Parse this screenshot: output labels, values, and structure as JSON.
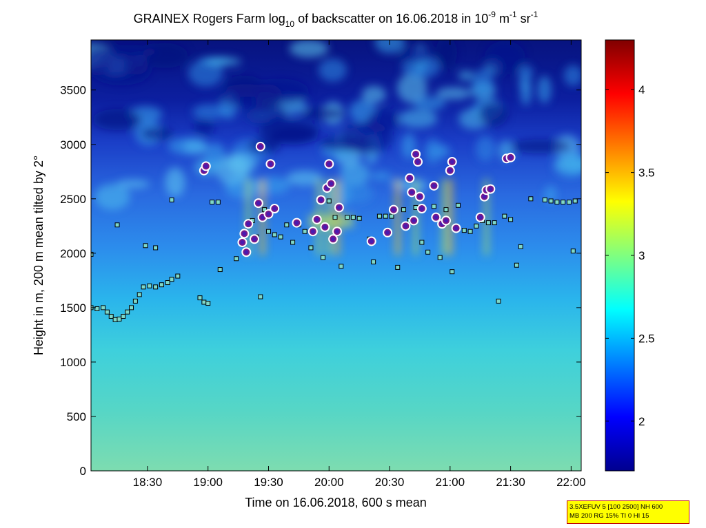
{
  "chart_data": {
    "type": "heatmap",
    "title": {
      "prefix": "GRAINEX Rogers Farm log",
      "prefix_sub": "10",
      "middle": " of backscatter on 16.06.2018 in 10",
      "exp1": "-9",
      "unit1": " m",
      "exp2": "-1",
      "unit2": " sr",
      "exp3": "-1"
    },
    "xlabel": "Time on 16.06.2018, 600 s mean",
    "ylabel": "Height in m, 200 m mean tilted by 2°",
    "xlim": [
      "18:02",
      "22:05"
    ],
    "ylim": [
      0,
      3960
    ],
    "x_ticks": [
      "18:30",
      "19:00",
      "19:30",
      "20:00",
      "20:30",
      "21:00",
      "21:30",
      "22:00"
    ],
    "y_ticks": [
      "0",
      "500",
      "1000",
      "1500",
      "2000",
      "2500",
      "3000",
      "3500"
    ],
    "colorbar": {
      "range": [
        1.7,
        4.3
      ],
      "ticks": [
        "2",
        "2.5",
        "3",
        "3.5",
        "4"
      ],
      "colormap": "jet"
    },
    "lower_layer_height_approx": 1500,
    "cloud_layer_height_approx": 2300,
    "square_markers": [
      {
        "x": "18:02",
        "y": 1500
      },
      {
        "x": "18:05",
        "y": 1490
      },
      {
        "x": "18:08",
        "y": 1500
      },
      {
        "x": "18:10",
        "y": 1460
      },
      {
        "x": "18:12",
        "y": 1420
      },
      {
        "x": "18:14",
        "y": 1390
      },
      {
        "x": "18:16",
        "y": 1395
      },
      {
        "x": "18:18",
        "y": 1420
      },
      {
        "x": "18:20",
        "y": 1460
      },
      {
        "x": "18:22",
        "y": 1500
      },
      {
        "x": "18:24",
        "y": 1560
      },
      {
        "x": "18:26",
        "y": 1620
      },
      {
        "x": "18:28",
        "y": 1690
      },
      {
        "x": "18:31",
        "y": 1700
      },
      {
        "x": "18:34",
        "y": 1690
      },
      {
        "x": "18:37",
        "y": 1710
      },
      {
        "x": "18:40",
        "y": 1730
      },
      {
        "x": "18:42",
        "y": 1760
      },
      {
        "x": "18:45",
        "y": 1790
      },
      {
        "x": "18:02",
        "y": 1990
      },
      {
        "x": "18:15",
        "y": 2260
      },
      {
        "x": "18:29",
        "y": 2070
      },
      {
        "x": "18:34",
        "y": 2050
      },
      {
        "x": "18:42",
        "y": 2490
      },
      {
        "x": "18:56",
        "y": 1590
      },
      {
        "x": "18:58",
        "y": 1550
      },
      {
        "x": "19:00",
        "y": 1540
      },
      {
        "x": "19:02",
        "y": 2470
      },
      {
        "x": "19:05",
        "y": 2470
      },
      {
        "x": "19:06",
        "y": 1850
      },
      {
        "x": "19:14",
        "y": 1950
      },
      {
        "x": "19:20",
        "y": 2250
      },
      {
        "x": "19:22",
        "y": 2300
      },
      {
        "x": "19:24",
        "y": 2150
      },
      {
        "x": "19:26",
        "y": 1600
      },
      {
        "x": "19:28",
        "y": 2400
      },
      {
        "x": "19:30",
        "y": 2200
      },
      {
        "x": "19:33",
        "y": 2170
      },
      {
        "x": "19:36",
        "y": 2150
      },
      {
        "x": "19:39",
        "y": 2260
      },
      {
        "x": "19:42",
        "y": 2100
      },
      {
        "x": "19:45",
        "y": 2260
      },
      {
        "x": "19:48",
        "y": 2200
      },
      {
        "x": "19:51",
        "y": 2050
      },
      {
        "x": "19:54",
        "y": 2300
      },
      {
        "x": "19:57",
        "y": 1960
      },
      {
        "x": "20:00",
        "y": 2480
      },
      {
        "x": "20:03",
        "y": 2330
      },
      {
        "x": "20:06",
        "y": 1880
      },
      {
        "x": "20:09",
        "y": 2330
      },
      {
        "x": "20:12",
        "y": 2330
      },
      {
        "x": "20:15",
        "y": 2320
      },
      {
        "x": "20:20",
        "y": 2130
      },
      {
        "x": "20:22",
        "y": 1920
      },
      {
        "x": "20:25",
        "y": 2340
      },
      {
        "x": "20:28",
        "y": 2340
      },
      {
        "x": "20:31",
        "y": 2340
      },
      {
        "x": "20:34",
        "y": 1870
      },
      {
        "x": "20:37",
        "y": 2400
      },
      {
        "x": "20:40",
        "y": 2300
      },
      {
        "x": "20:43",
        "y": 2420
      },
      {
        "x": "20:46",
        "y": 2100
      },
      {
        "x": "20:49",
        "y": 2010
      },
      {
        "x": "20:52",
        "y": 2430
      },
      {
        "x": "20:55",
        "y": 1960
      },
      {
        "x": "20:58",
        "y": 2400
      },
      {
        "x": "21:01",
        "y": 1830
      },
      {
        "x": "21:04",
        "y": 2440
      },
      {
        "x": "21:07",
        "y": 2210
      },
      {
        "x": "21:10",
        "y": 2200
      },
      {
        "x": "21:13",
        "y": 2250
      },
      {
        "x": "21:16",
        "y": 2300
      },
      {
        "x": "21:19",
        "y": 2280
      },
      {
        "x": "21:22",
        "y": 2280
      },
      {
        "x": "21:24",
        "y": 1560
      },
      {
        "x": "21:27",
        "y": 2340
      },
      {
        "x": "21:30",
        "y": 2310
      },
      {
        "x": "21:33",
        "y": 1890
      },
      {
        "x": "21:35",
        "y": 2060
      },
      {
        "x": "21:40",
        "y": 2500
      },
      {
        "x": "21:47",
        "y": 2490
      },
      {
        "x": "21:50",
        "y": 2480
      },
      {
        "x": "21:53",
        "y": 2470
      },
      {
        "x": "21:56",
        "y": 2470
      },
      {
        "x": "21:59",
        "y": 2470
      },
      {
        "x": "22:02",
        "y": 2480
      },
      {
        "x": "22:01",
        "y": 2020
      }
    ],
    "circle_markers": [
      {
        "x": "18:58",
        "y": 2760
      },
      {
        "x": "18:59",
        "y": 2800
      },
      {
        "x": "19:17",
        "y": 2100
      },
      {
        "x": "19:18",
        "y": 2180
      },
      {
        "x": "19:19",
        "y": 2010
      },
      {
        "x": "19:20",
        "y": 2270
      },
      {
        "x": "19:23",
        "y": 2130
      },
      {
        "x": "19:25",
        "y": 2460
      },
      {
        "x": "19:26",
        "y": 2980
      },
      {
        "x": "19:27",
        "y": 2330
      },
      {
        "x": "19:30",
        "y": 2360
      },
      {
        "x": "19:31",
        "y": 2820
      },
      {
        "x": "19:33",
        "y": 2410
      },
      {
        "x": "19:44",
        "y": 2280
      },
      {
        "x": "19:52",
        "y": 2200
      },
      {
        "x": "19:54",
        "y": 2310
      },
      {
        "x": "19:56",
        "y": 2490
      },
      {
        "x": "19:58",
        "y": 2240
      },
      {
        "x": "19:59",
        "y": 2600
      },
      {
        "x": "20:00",
        "y": 2820
      },
      {
        "x": "20:01",
        "y": 2640
      },
      {
        "x": "20:02",
        "y": 2130
      },
      {
        "x": "20:04",
        "y": 2200
      },
      {
        "x": "20:05",
        "y": 2420
      },
      {
        "x": "20:21",
        "y": 2110
      },
      {
        "x": "20:29",
        "y": 2190
      },
      {
        "x": "20:32",
        "y": 2400
      },
      {
        "x": "20:38",
        "y": 2250
      },
      {
        "x": "20:40",
        "y": 2690
      },
      {
        "x": "20:41",
        "y": 2560
      },
      {
        "x": "20:42",
        "y": 2300
      },
      {
        "x": "20:43",
        "y": 2910
      },
      {
        "x": "20:44",
        "y": 2840
      },
      {
        "x": "20:45",
        "y": 2520
      },
      {
        "x": "20:46",
        "y": 2410
      },
      {
        "x": "20:52",
        "y": 2620
      },
      {
        "x": "20:53",
        "y": 2330
      },
      {
        "x": "20:56",
        "y": 2270
      },
      {
        "x": "20:58",
        "y": 2300
      },
      {
        "x": "21:00",
        "y": 2760
      },
      {
        "x": "21:01",
        "y": 2840
      },
      {
        "x": "21:03",
        "y": 2230
      },
      {
        "x": "21:15",
        "y": 2330
      },
      {
        "x": "21:17",
        "y": 2520
      },
      {
        "x": "21:18",
        "y": 2580
      },
      {
        "x": "21:20",
        "y": 2590
      },
      {
        "x": "21:28",
        "y": 2870
      },
      {
        "x": "21:30",
        "y": 2880
      }
    ],
    "grid": false,
    "legend": "none"
  },
  "info_box": {
    "line1": "3.5XEFUV 5 [100 2500] NH 600",
    "line2": "MB 200 RG 15% TI 0 HI 15"
  }
}
